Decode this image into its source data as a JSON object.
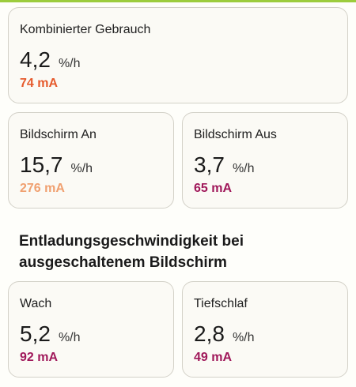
{
  "colors": {
    "accent_bar": "#9ccc3d",
    "combined_current": "#e65a2c",
    "screen_on_current": "#f0a070",
    "screen_off_current": "#a0185a",
    "awake_current": "#a0185a",
    "deepsleep_current": "#a0185a"
  },
  "combined": {
    "label": "Kombinierter Gebrauch",
    "value": "4,2",
    "unit": "%/h",
    "current": "74 mA"
  },
  "screen_on": {
    "label": "Bildschirm An",
    "value": "15,7",
    "unit": "%/h",
    "current": "276 mA"
  },
  "screen_off": {
    "label": "Bildschirm Aus",
    "value": "3,7",
    "unit": "%/h",
    "current": "65 mA"
  },
  "section": {
    "title": "Entladungsgeschwindigkeit bei ausgeschaltenem Bildschirm"
  },
  "awake": {
    "label": "Wach",
    "value": "5,2",
    "unit": "%/h",
    "current": "92 mA"
  },
  "deepsleep": {
    "label": "Tiefschlaf",
    "value": "2,8",
    "unit": "%/h",
    "current": "49 mA"
  }
}
